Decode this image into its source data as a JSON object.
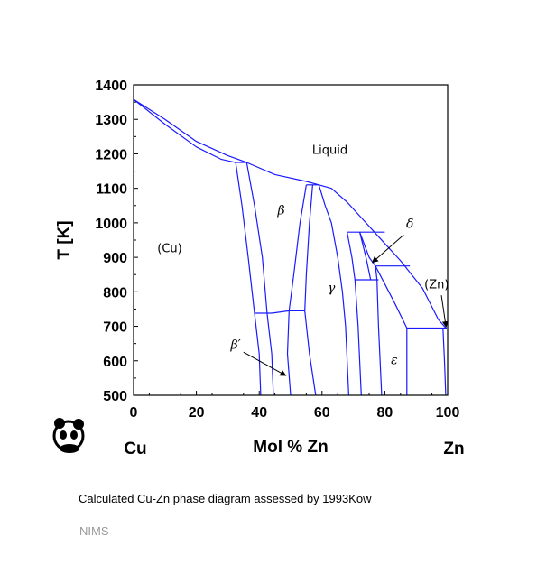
{
  "chart_data": {
    "type": "phase-diagram",
    "xlabel": "Mol % Zn",
    "ylabel": "T [K]",
    "xlim": [
      0,
      100
    ],
    "ylim": [
      500,
      1400
    ],
    "x_ticks": [
      0,
      20,
      40,
      60,
      80,
      100
    ],
    "y_ticks": [
      500,
      600,
      700,
      800,
      900,
      1000,
      1100,
      1200,
      1300,
      1400
    ],
    "x_end_labels": {
      "left": "Cu",
      "right": "Zn"
    },
    "line_color": "#1a1aff",
    "boundaries": [
      {
        "name": "liquidus-cu-beta",
        "points": [
          [
            0,
            1358
          ],
          [
            10,
            1300
          ],
          [
            20,
            1236
          ],
          [
            30,
            1195
          ],
          [
            36,
            1175
          ]
        ]
      },
      {
        "name": "solidus-cu",
        "points": [
          [
            0,
            1358
          ],
          [
            10,
            1286
          ],
          [
            20,
            1220
          ],
          [
            28,
            1184
          ],
          [
            32.5,
            1175
          ]
        ]
      },
      {
        "name": "liquidus-beta-gamma",
        "points": [
          [
            36,
            1175
          ],
          [
            45,
            1140
          ],
          [
            55,
            1120
          ],
          [
            59,
            1110
          ]
        ]
      },
      {
        "name": "peritectic-1175",
        "points": [
          [
            32.5,
            1175
          ],
          [
            36,
            1175
          ]
        ]
      },
      {
        "name": "peritectic-1110",
        "points": [
          [
            55,
            1110
          ],
          [
            59,
            1110
          ]
        ]
      },
      {
        "name": "cu-solvus",
        "points": [
          [
            32.5,
            1175
          ],
          [
            34.5,
            1050
          ],
          [
            36.5,
            900
          ],
          [
            38.5,
            738
          ],
          [
            40,
            620
          ],
          [
            40.5,
            500
          ]
        ]
      },
      {
        "name": "beta-boundary-left",
        "points": [
          [
            36,
            1175
          ],
          [
            38.5,
            1050
          ],
          [
            41,
            900
          ],
          [
            42.5,
            738
          ],
          [
            44,
            620
          ],
          [
            44.5,
            500
          ]
        ]
      },
      {
        "name": "beta-boundary-right",
        "points": [
          [
            55,
            1110
          ],
          [
            53,
            1000
          ],
          [
            51,
            850
          ],
          [
            49.5,
            745
          ],
          [
            49,
            620
          ],
          [
            50,
            500
          ]
        ]
      },
      {
        "name": "gamma-boundary-left",
        "points": [
          [
            57,
            1110
          ],
          [
            56,
            1000
          ],
          [
            55,
            850
          ],
          [
            54.5,
            745
          ],
          [
            56,
            620
          ],
          [
            58,
            500
          ]
        ]
      },
      {
        "name": "beta-order-transition",
        "points": [
          [
            38.5,
            738
          ],
          [
            44,
            738
          ],
          [
            49.5,
            745
          ],
          [
            54.5,
            745
          ]
        ]
      },
      {
        "name": "gamma-liquidus",
        "points": [
          [
            59,
            1110
          ],
          [
            63,
            1100
          ],
          [
            68,
            1060
          ],
          [
            74,
            1000
          ],
          [
            78,
            960
          ],
          [
            85,
            890
          ],
          [
            92,
            810
          ],
          [
            97,
            720
          ],
          [
            99.7,
            692
          ]
        ]
      },
      {
        "name": "gamma-solidus-right",
        "points": [
          [
            59,
            1110
          ],
          [
            61,
            1050
          ],
          [
            63,
            1000
          ],
          [
            65,
            900
          ],
          [
            66.5,
            800
          ],
          [
            67.5,
            700
          ],
          [
            68.5,
            500
          ]
        ]
      },
      {
        "name": "peritectic-973",
        "points": [
          [
            68,
            973
          ],
          [
            80,
            973
          ]
        ]
      },
      {
        "name": "gamma-delta-left",
        "points": [
          [
            68,
            973
          ],
          [
            69.5,
            900
          ],
          [
            70.5,
            835
          ],
          [
            71.5,
            700
          ],
          [
            72.5,
            500
          ]
        ]
      },
      {
        "name": "delta-left",
        "points": [
          [
            72,
            973
          ],
          [
            74,
            900
          ],
          [
            75.5,
            835
          ]
        ]
      },
      {
        "name": "delta-right",
        "points": [
          [
            72,
            973
          ],
          [
            75,
            900
          ],
          [
            77,
            875
          ]
        ]
      },
      {
        "name": "eutectoid-835",
        "points": [
          [
            70.5,
            835
          ],
          [
            78,
            835
          ]
        ]
      },
      {
        "name": "epsilon-left",
        "points": [
          [
            77,
            875
          ],
          [
            77.5,
            835
          ],
          [
            78,
            700
          ],
          [
            79,
            500
          ]
        ]
      },
      {
        "name": "peritectic-870",
        "points": [
          [
            77,
            875
          ],
          [
            88,
            875
          ]
        ]
      },
      {
        "name": "epsilon-right",
        "points": [
          [
            77,
            875
          ],
          [
            83,
            770
          ],
          [
            87,
            695
          ],
          [
            87,
            500
          ]
        ]
      },
      {
        "name": "eutectic-692",
        "points": [
          [
            87,
            695
          ],
          [
            99.7,
            695
          ]
        ]
      },
      {
        "name": "zn-solvus",
        "points": [
          [
            98.5,
            695
          ],
          [
            99,
            600
          ],
          [
            99.4,
            500
          ]
        ]
      }
    ],
    "region_labels": [
      {
        "text": "Liquid",
        "x": 62.5,
        "y": 1200
      },
      {
        "text": "(Cu)",
        "x": 11.5,
        "y": 915
      },
      {
        "text": "β",
        "x": 47,
        "y": 1025
      },
      {
        "text": "γ",
        "x": 63,
        "y": 800
      },
      {
        "text": "ε",
        "x": 83,
        "y": 590
      },
      {
        "text": "δ",
        "x": 88,
        "y": 985
      },
      {
        "text": "(Zn)",
        "x": 96.5,
        "y": 810
      },
      {
        "text": "β′",
        "x": 32.5,
        "y": 635
      }
    ],
    "arrows": [
      {
        "label": "δ",
        "from": [
          86,
          965
        ],
        "to": [
          76,
          885
        ]
      },
      {
        "label": "(Zn)",
        "from": [
          98,
          790
        ],
        "to": [
          99.5,
          698
        ]
      },
      {
        "label": "β′",
        "from": [
          35,
          625
        ],
        "to": [
          48.5,
          557
        ]
      }
    ]
  },
  "caption": "Calculated Cu-Zn phase diagram assessed by 1993Kow",
  "source": "NIMS",
  "logo": {
    "icon": "panda-icon"
  }
}
